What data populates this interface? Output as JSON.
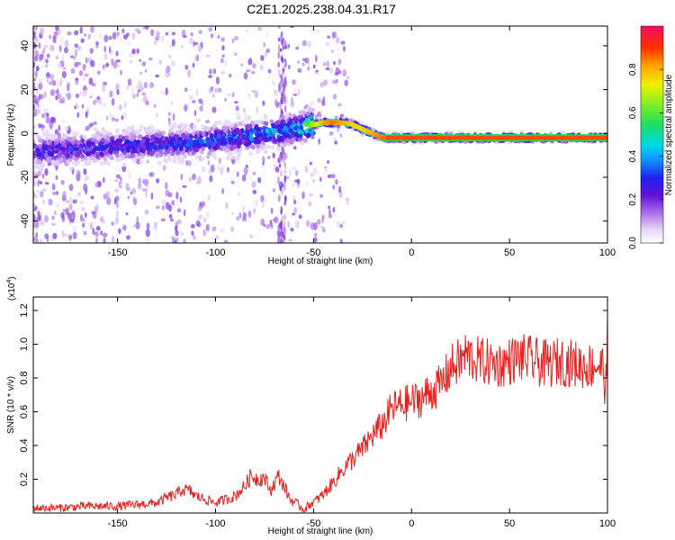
{
  "title": "C2E1.2025.238.04.31.R17",
  "chart_data": [
    {
      "type": "heatmap",
      "title": "C2E1.2025.238.04.31.R17",
      "xlabel": "Height of straight line (km)",
      "ylabel": "Frequency (Hz)",
      "xlim": [
        -193,
        100
      ],
      "ylim": [
        -50,
        49
      ],
      "xticks": [
        -150,
        -100,
        -50,
        0,
        50,
        100
      ],
      "yticks": [
        -40,
        -20,
        0,
        20,
        40
      ],
      "grid": false,
      "ridge": {
        "description_points_x_km": [
          -190,
          -170,
          -150,
          -130,
          -110,
          -90,
          -75,
          -60,
          -50,
          -45,
          -40,
          -35,
          -30,
          -25,
          -20,
          -15,
          0,
          50,
          100
        ],
        "center_freq_hz": [
          -8,
          -7,
          -6,
          -5,
          -4,
          -2,
          0,
          2,
          4,
          5,
          5,
          5,
          4,
          2,
          0,
          -2,
          -2,
          -2,
          -2
        ],
        "normalized_amplitude": [
          0.3,
          0.3,
          0.3,
          0.32,
          0.35,
          0.38,
          0.42,
          0.45,
          0.7,
          0.85,
          0.9,
          0.85,
          0.8,
          0.8,
          0.85,
          0.9,
          0.95,
          0.95,
          0.95
        ]
      },
      "colorbar": {
        "label": "Normalized spectral amplitude",
        "range": [
          0.0,
          1.0
        ],
        "ticks": [
          "0.0",
          "0.2",
          "0.4",
          "0.6",
          "0.8"
        ]
      }
    },
    {
      "type": "line",
      "xlabel": "Height of straight line (km)",
      "ylabel": "SNR (10 * v/v)",
      "ymultiplier": "(x10",
      "ymultiplier_exp": "4",
      "ymultiplier_close": ")",
      "xlim": [
        -193,
        100
      ],
      "ylim": [
        0,
        1.28
      ],
      "xticks": [
        -150,
        -100,
        -50,
        0,
        50,
        100
      ],
      "yticks": [
        "0.2",
        "0.4",
        "0.6",
        "0.8",
        "1.0",
        "1.2"
      ],
      "series": [
        {
          "name": "SNR",
          "color": "#e8201e",
          "x": [
            -193,
            -180,
            -165,
            -150,
            -140,
            -130,
            -125,
            -120,
            -117,
            -113,
            -110,
            -100,
            -95,
            -90,
            -85,
            -82,
            -78,
            -75,
            -72,
            -68,
            -65,
            -62,
            -58,
            -55,
            -52,
            -48,
            -45,
            -40,
            -35,
            -30,
            -25,
            -20,
            -15,
            -10,
            -5,
            0,
            5,
            10,
            15,
            18,
            20,
            25,
            28,
            30,
            35,
            40,
            45,
            50,
            55,
            60,
            65,
            70,
            75,
            80,
            85,
            90,
            95,
            98,
            99,
            100
          ],
          "y": [
            0.03,
            0.03,
            0.04,
            0.04,
            0.05,
            0.06,
            0.09,
            0.11,
            0.14,
            0.13,
            0.1,
            0.06,
            0.08,
            0.1,
            0.16,
            0.22,
            0.2,
            0.21,
            0.13,
            0.22,
            0.16,
            0.08,
            0.05,
            0.02,
            0.05,
            0.08,
            0.11,
            0.18,
            0.26,
            0.32,
            0.38,
            0.46,
            0.52,
            0.62,
            0.64,
            0.66,
            0.68,
            0.72,
            0.76,
            0.82,
            0.86,
            0.9,
            0.94,
            0.92,
            0.9,
            0.89,
            0.88,
            0.9,
            0.92,
            0.91,
            0.89,
            0.88,
            0.9,
            0.89,
            0.88,
            0.87,
            0.88,
            0.86,
            0.7,
            1.0
          ]
        }
      ]
    }
  ]
}
